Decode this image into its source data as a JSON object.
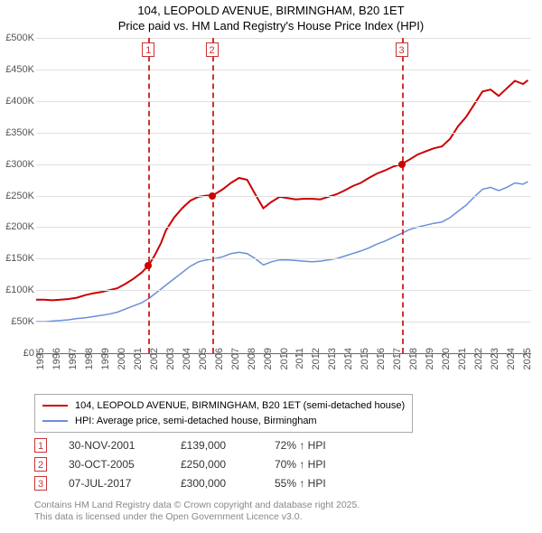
{
  "title": {
    "line1": "104, LEOPOLD AVENUE, BIRMINGHAM, B20 1ET",
    "line2": "Price paid vs. HM Land Registry's House Price Index (HPI)",
    "fontsize": 13,
    "color": "#000000"
  },
  "chart": {
    "type": "line",
    "background_color": "#ffffff",
    "grid_color": "#e0e0e0",
    "axis_color": "#666666",
    "tick_color": "#555555",
    "tick_fontsize": 11,
    "ylim": [
      0,
      500
    ],
    "yticks": [
      0,
      50,
      100,
      150,
      200,
      250,
      300,
      350,
      400,
      450,
      500
    ],
    "ytick_labels": [
      "£0",
      "£50K",
      "£100K",
      "£150K",
      "£200K",
      "£250K",
      "£300K",
      "£350K",
      "£400K",
      "£450K",
      "£500K"
    ],
    "xlim": [
      1995,
      2025.5
    ],
    "xticks": [
      1995,
      1996,
      1997,
      1998,
      1999,
      2000,
      2001,
      2002,
      2003,
      2004,
      2005,
      2006,
      2007,
      2008,
      2009,
      2010,
      2011,
      2012,
      2013,
      2014,
      2015,
      2016,
      2017,
      2018,
      2019,
      2020,
      2021,
      2022,
      2023,
      2024,
      2025
    ],
    "series": [
      {
        "name": "price_paid",
        "label": "104, LEOPOLD AVENUE, BIRMINGHAM, B20 1ET (semi-detached house)",
        "color": "#cc0000",
        "line_width": 2,
        "data": [
          [
            1995.0,
            85
          ],
          [
            1995.5,
            85
          ],
          [
            1996.0,
            84
          ],
          [
            1996.5,
            85
          ],
          [
            1997.0,
            86
          ],
          [
            1997.5,
            88
          ],
          [
            1998.0,
            92
          ],
          [
            1998.5,
            95
          ],
          [
            1999.0,
            97
          ],
          [
            1999.5,
            100
          ],
          [
            2000.0,
            103
          ],
          [
            2000.5,
            110
          ],
          [
            2001.0,
            118
          ],
          [
            2001.5,
            128
          ],
          [
            2001.92,
            139
          ],
          [
            2002.3,
            155
          ],
          [
            2002.7,
            175
          ],
          [
            2003.0,
            195
          ],
          [
            2003.5,
            215
          ],
          [
            2004.0,
            230
          ],
          [
            2004.5,
            242
          ],
          [
            2005.0,
            248
          ],
          [
            2005.5,
            250
          ],
          [
            2005.83,
            250
          ],
          [
            2006.0,
            252
          ],
          [
            2006.5,
            260
          ],
          [
            2007.0,
            270
          ],
          [
            2007.5,
            278
          ],
          [
            2008.0,
            275
          ],
          [
            2008.5,
            252
          ],
          [
            2009.0,
            230
          ],
          [
            2009.5,
            240
          ],
          [
            2010.0,
            248
          ],
          [
            2010.5,
            246
          ],
          [
            2011.0,
            244
          ],
          [
            2011.5,
            245
          ],
          [
            2012.0,
            245
          ],
          [
            2012.5,
            244
          ],
          [
            2013.0,
            248
          ],
          [
            2013.5,
            252
          ],
          [
            2014.0,
            258
          ],
          [
            2014.5,
            265
          ],
          [
            2015.0,
            270
          ],
          [
            2015.5,
            278
          ],
          [
            2016.0,
            285
          ],
          [
            2016.5,
            290
          ],
          [
            2017.0,
            296
          ],
          [
            2017.52,
            300
          ],
          [
            2018.0,
            307
          ],
          [
            2018.5,
            315
          ],
          [
            2019.0,
            320
          ],
          [
            2019.5,
            325
          ],
          [
            2020.0,
            328
          ],
          [
            2020.5,
            340
          ],
          [
            2021.0,
            360
          ],
          [
            2021.5,
            375
          ],
          [
            2022.0,
            395
          ],
          [
            2022.5,
            415
          ],
          [
            2023.0,
            418
          ],
          [
            2023.5,
            408
          ],
          [
            2024.0,
            420
          ],
          [
            2024.5,
            432
          ],
          [
            2025.0,
            427
          ],
          [
            2025.3,
            433
          ]
        ]
      },
      {
        "name": "hpi",
        "label": "HPI: Average price, semi-detached house, Birmingham",
        "color": "#6a8fd8",
        "line_width": 1.5,
        "data": [
          [
            1995.0,
            50
          ],
          [
            1995.6,
            50
          ],
          [
            1996.0,
            51
          ],
          [
            1996.5,
            52
          ],
          [
            1997.0,
            53
          ],
          [
            1997.5,
            55
          ],
          [
            1998.0,
            56
          ],
          [
            1998.5,
            58
          ],
          [
            1999.0,
            60
          ],
          [
            1999.5,
            62
          ],
          [
            2000.0,
            65
          ],
          [
            2000.5,
            70
          ],
          [
            2001.0,
            75
          ],
          [
            2001.5,
            80
          ],
          [
            2002.0,
            88
          ],
          [
            2002.5,
            98
          ],
          [
            2003.0,
            108
          ],
          [
            2003.5,
            118
          ],
          [
            2004.0,
            128
          ],
          [
            2004.5,
            138
          ],
          [
            2005.0,
            145
          ],
          [
            2005.5,
            148
          ],
          [
            2006.0,
            150
          ],
          [
            2006.5,
            153
          ],
          [
            2007.0,
            158
          ],
          [
            2007.5,
            160
          ],
          [
            2008.0,
            158
          ],
          [
            2008.5,
            150
          ],
          [
            2009.0,
            140
          ],
          [
            2009.5,
            145
          ],
          [
            2010.0,
            148
          ],
          [
            2010.5,
            148
          ],
          [
            2011.0,
            147
          ],
          [
            2011.5,
            146
          ],
          [
            2012.0,
            145
          ],
          [
            2012.5,
            146
          ],
          [
            2013.0,
            148
          ],
          [
            2013.5,
            150
          ],
          [
            2014.0,
            154
          ],
          [
            2014.5,
            158
          ],
          [
            2015.0,
            162
          ],
          [
            2015.5,
            167
          ],
          [
            2016.0,
            173
          ],
          [
            2016.5,
            178
          ],
          [
            2017.0,
            184
          ],
          [
            2017.5,
            190
          ],
          [
            2018.0,
            196
          ],
          [
            2018.5,
            200
          ],
          [
            2019.0,
            203
          ],
          [
            2019.5,
            206
          ],
          [
            2020.0,
            208
          ],
          [
            2020.5,
            215
          ],
          [
            2021.0,
            225
          ],
          [
            2021.5,
            235
          ],
          [
            2022.0,
            248
          ],
          [
            2022.5,
            260
          ],
          [
            2023.0,
            263
          ],
          [
            2023.5,
            258
          ],
          [
            2024.0,
            263
          ],
          [
            2024.5,
            270
          ],
          [
            2025.0,
            268
          ],
          [
            2025.3,
            272
          ]
        ]
      }
    ],
    "markers": [
      {
        "n": "1",
        "x": 2001.92,
        "y": 139
      },
      {
        "n": "2",
        "x": 2005.83,
        "y": 250
      },
      {
        "n": "3",
        "x": 2017.52,
        "y": 300
      }
    ],
    "marker_style": {
      "line_color": "#cc3333",
      "line_dash": "4,3",
      "badge_border": "#cc3333",
      "badge_bg": "#ffffff",
      "badge_text_color": "#cc3333",
      "dot_color": "#cc0000",
      "dot_radius": 4
    }
  },
  "legend": {
    "border_color": "#aaaaaa",
    "fontsize": 11
  },
  "sales": [
    {
      "n": "1",
      "date": "30-NOV-2001",
      "price": "£139,000",
      "pct": "72% ↑ HPI"
    },
    {
      "n": "2",
      "date": "30-OCT-2005",
      "price": "£250,000",
      "pct": "70% ↑ HPI"
    },
    {
      "n": "3",
      "date": "07-JUL-2017",
      "price": "£300,000",
      "pct": "55% ↑ HPI"
    }
  ],
  "footer": {
    "line1": "Contains HM Land Registry data © Crown copyright and database right 2025.",
    "line2": "This data is licensed under the Open Government Licence v3.0.",
    "color": "#888888",
    "fontsize": 10.5
  }
}
